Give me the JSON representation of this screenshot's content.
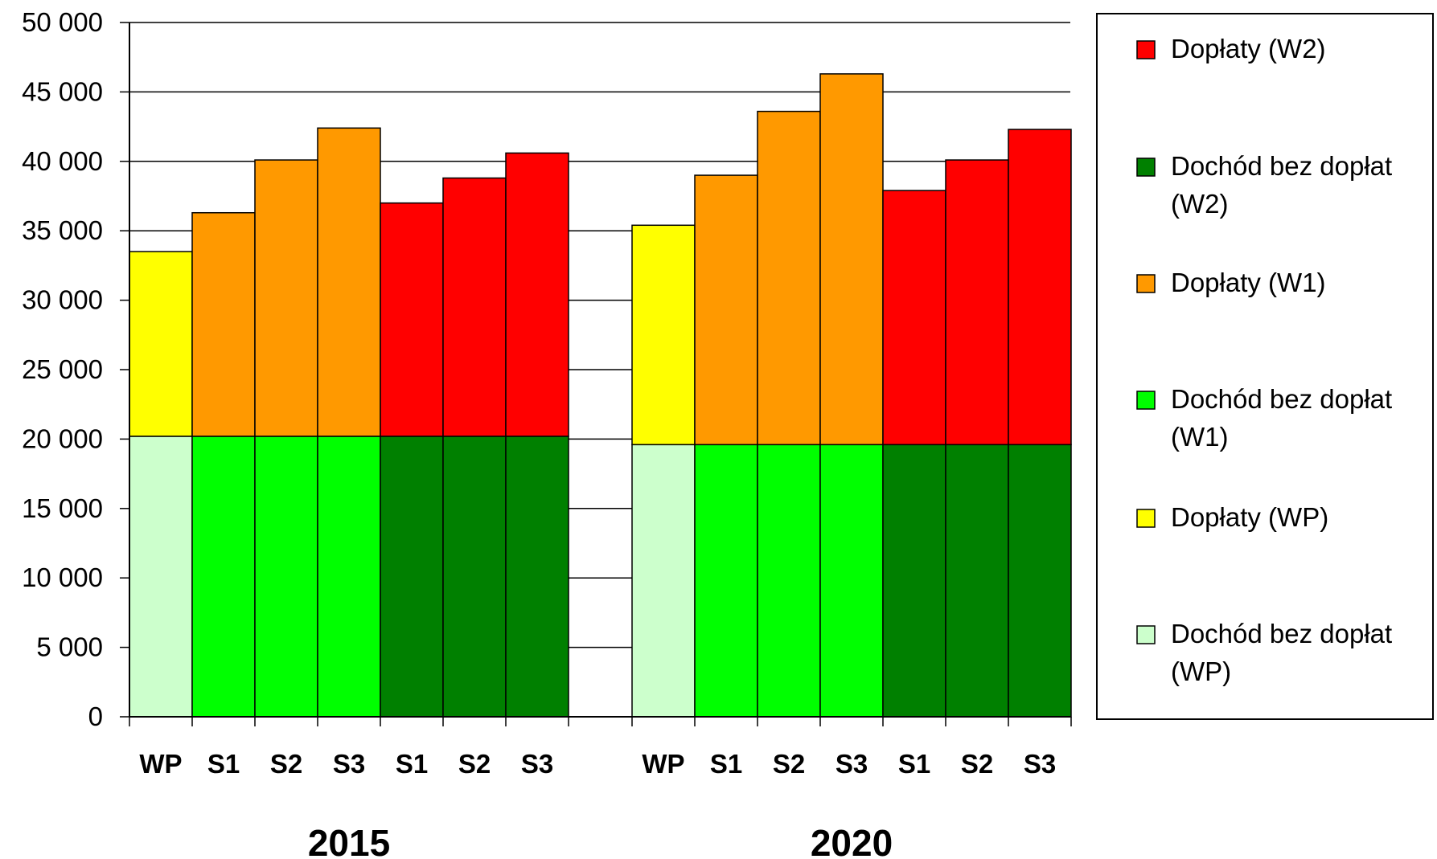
{
  "chart_data": {
    "type": "bar",
    "stacked": true,
    "ylim": [
      0,
      50000
    ],
    "y_ticks": [
      {
        "value": 0,
        "label": "0"
      },
      {
        "value": 5000,
        "label": "5 000"
      },
      {
        "value": 10000,
        "label": "10 000"
      },
      {
        "value": 15000,
        "label": "15 000"
      },
      {
        "value": 20000,
        "label": "20 000"
      },
      {
        "value": 25000,
        "label": "25 000"
      },
      {
        "value": 30000,
        "label": "30 000"
      },
      {
        "value": 35000,
        "label": "35 000"
      },
      {
        "value": 40000,
        "label": "40 000"
      },
      {
        "value": 45000,
        "label": "45 000"
      },
      {
        "value": 50000,
        "label": "50 000"
      }
    ],
    "grid": true,
    "legend_position": "right",
    "groups": [
      {
        "label": "2015",
        "bars": [
          {
            "label": "WP",
            "base": 20200,
            "base_series": "Dochód bez dopłat (WP)",
            "top_value": 33500,
            "top_series": "Dopłaty (WP)"
          },
          {
            "label": "S1",
            "base": 20200,
            "base_series": "Dochód bez dopłat (W1)",
            "top_value": 36300,
            "top_series": "Dopłaty (W1)"
          },
          {
            "label": "S2",
            "base": 20200,
            "base_series": "Dochód bez dopłat (W1)",
            "top_value": 40100,
            "top_series": "Dopłaty (W1)"
          },
          {
            "label": "S3",
            "base": 20200,
            "base_series": "Dochód bez dopłat (W1)",
            "top_value": 42400,
            "top_series": "Dopłaty (W1)"
          },
          {
            "label": "S1",
            "base": 20200,
            "base_series": "Dochód bez dopłat (W2)",
            "top_value": 37000,
            "top_series": "Dopłaty (W2)"
          },
          {
            "label": "S2",
            "base": 20200,
            "base_series": "Dochód bez dopłat (W2)",
            "top_value": 38800,
            "top_series": "Dopłaty (W2)"
          },
          {
            "label": "S3",
            "base": 20200,
            "base_series": "Dochód bez dopłat (W2)",
            "top_value": 40600,
            "top_series": "Dopłaty (W2)"
          }
        ]
      },
      {
        "label": "2020",
        "bars": [
          {
            "label": "WP",
            "base": 19600,
            "base_series": "Dochód bez dopłat (WP)",
            "top_value": 35400,
            "top_series": "Dopłaty (WP)"
          },
          {
            "label": "S1",
            "base": 19600,
            "base_series": "Dochód bez dopłat (W1)",
            "top_value": 39000,
            "top_series": "Dopłaty (W1)"
          },
          {
            "label": "S2",
            "base": 19600,
            "base_series": "Dochód bez dopłat (W1)",
            "top_value": 43600,
            "top_series": "Dopłaty (W1)"
          },
          {
            "label": "S3",
            "base": 19600,
            "base_series": "Dochód bez dopłat (W1)",
            "top_value": 46300,
            "top_series": "Dopłaty (W1)"
          },
          {
            "label": "S1",
            "base": 19600,
            "base_series": "Dochód bez dopłat (W2)",
            "top_value": 37900,
            "top_series": "Dopłaty (W2)"
          },
          {
            "label": "S2",
            "base": 19600,
            "base_series": "Dochód bez dopłat (W2)",
            "top_value": 40100,
            "top_series": "Dopłaty (W2)"
          },
          {
            "label": "S3",
            "base": 19600,
            "base_series": "Dochód bez dopłat (W2)",
            "top_value": 42300,
            "top_series": "Dopłaty (W2)"
          }
        ]
      }
    ],
    "legend": [
      {
        "name": "Dopłaty (W2)",
        "color": "#FF0000",
        "lines": [
          "Dopłaty (W2)"
        ]
      },
      {
        "name": "Dochód bez dopłat (W2)",
        "color": "#008000",
        "lines": [
          "Dochód bez dopłat",
          "(W2)"
        ]
      },
      {
        "name": "Dopłaty (W1)",
        "color": "#FF9900",
        "lines": [
          "Dopłaty (W1)"
        ]
      },
      {
        "name": "Dochód bez dopłat (W1)",
        "color": "#00FF00",
        "lines": [
          "Dochód bez dopłat",
          "(W1)"
        ]
      },
      {
        "name": "Dopłaty (WP)",
        "color": "#FFFF00",
        "lines": [
          "Dopłaty (WP)"
        ]
      },
      {
        "name": "Dochód bez dopłat (WP)",
        "color": "#CCFFCC",
        "lines": [
          "Dochód bez dopłat",
          "(WP)"
        ]
      }
    ]
  }
}
